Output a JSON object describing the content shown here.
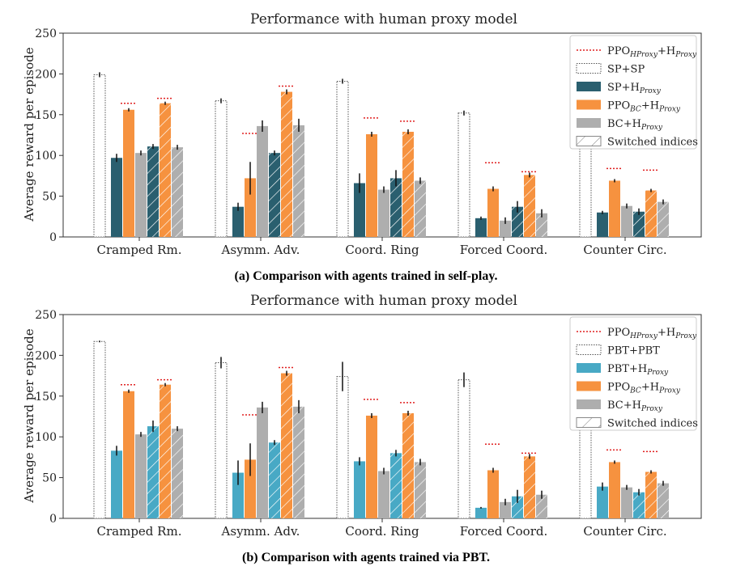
{
  "colors": {
    "sp_sp_edge": "#555555",
    "sp_proxy": "#2a5f6f",
    "pbt_proxy": "#48a9c5",
    "ppo_bc": "#f6923f",
    "bc": "#aeaeae",
    "ppo_ref": "#e02020",
    "error": "#111111"
  },
  "chart_data": [
    {
      "type": "bar",
      "title": "Performance with human proxy model",
      "caption": "(a) Comparison with agents trained in self-play.",
      "ylabel": "Average reward per episode",
      "ylim": [
        0,
        250
      ],
      "yticks": [
        "0",
        "50",
        "100",
        "150",
        "200",
        "250"
      ],
      "grid": false,
      "legend_position": "top-right",
      "categories": [
        "Cramped Rm.",
        "Asymm. Adv.",
        "Coord. Ring",
        "Forced Coord.",
        "Counter Circ."
      ],
      "legend": [
        {
          "label": "PPO",
          "sub": "HProxy",
          "tail": "+H",
          "tail_sub": "Proxy",
          "style": "ppo_ref"
        },
        {
          "label": "SP+SP",
          "style": "selfplay"
        },
        {
          "label": "SP+H",
          "sub": "Proxy",
          "style": "agent"
        },
        {
          "label": "PPO",
          "sub": "BC",
          "tail": "+H",
          "tail_sub": "Proxy",
          "style": "ppo_bc"
        },
        {
          "label": "BC+H",
          "sub": "Proxy",
          "style": "bc"
        },
        {
          "label": "Switched indices",
          "style": "hatch"
        }
      ],
      "series": [
        {
          "name": "SP+SP",
          "values": [
            199,
            167,
            191,
            152,
            157
          ],
          "errors": [
            3,
            3,
            3,
            3,
            3
          ]
        },
        {
          "name": "SP+HProxy",
          "values": [
            97,
            37,
            66,
            23,
            30
          ],
          "errors": [
            5,
            5,
            12,
            2,
            2
          ]
        },
        {
          "name": "PPOBC+HProxy",
          "values": [
            156,
            72,
            126,
            59,
            69
          ],
          "errors": [
            2,
            20,
            3,
            3,
            2
          ]
        },
        {
          "name": "BC+HProxy",
          "values": [
            103,
            null,
            58,
            20,
            38
          ],
          "errors": [
            3,
            0,
            4,
            4,
            3
          ]
        },
        {
          "name": "SP+HProxy (switched)",
          "values": [
            111,
            103,
            72,
            37,
            31
          ],
          "errors": [
            3,
            3,
            10,
            7,
            4
          ]
        },
        {
          "name": "PPOBC+HProxy (switched)",
          "values": [
            164,
            178,
            129,
            76,
            57
          ],
          "errors": [
            2,
            3,
            3,
            3,
            2
          ]
        },
        {
          "name": "BC+HProxy (switched)",
          "values": [
            110,
            137,
            69,
            29,
            43
          ],
          "errors": [
            3,
            8,
            4,
            5,
            3
          ]
        },
        {
          "name": "BC+HProxy (asymm. left)",
          "values": [
            null,
            136,
            null,
            null,
            null
          ],
          "errors": [
            0,
            7,
            0,
            0,
            0
          ]
        }
      ],
      "ppo_hproxy_ref": {
        "left": [
          164,
          127,
          146,
          91,
          84
        ],
        "right": [
          170,
          185,
          142,
          80,
          82
        ]
      }
    },
    {
      "type": "bar",
      "title": "Performance with human proxy model",
      "caption": "(b) Comparison with agents trained via PBT.",
      "ylabel": "Average reward per episode",
      "ylim": [
        0,
        250
      ],
      "yticks": [
        "0",
        "50",
        "100",
        "150",
        "200",
        "250"
      ],
      "grid": false,
      "legend_position": "top-right",
      "categories": [
        "Cramped Rm.",
        "Asymm. Adv.",
        "Coord. Ring",
        "Forced Coord.",
        "Counter Circ."
      ],
      "legend": [
        {
          "label": "PPO",
          "sub": "HProxy",
          "tail": "+H",
          "tail_sub": "Proxy",
          "style": "ppo_ref"
        },
        {
          "label": "PBT+PBT",
          "style": "selfplay"
        },
        {
          "label": "PBT+H",
          "sub": "Proxy",
          "style": "agent"
        },
        {
          "label": "PPO",
          "sub": "BC",
          "tail": "+H",
          "tail_sub": "Proxy",
          "style": "ppo_bc"
        },
        {
          "label": "BC+H",
          "sub": "Proxy",
          "style": "bc"
        },
        {
          "label": "Switched indices",
          "style": "hatch"
        }
      ],
      "series": [
        {
          "name": "PBT+PBT",
          "values": [
            217,
            191,
            174,
            170,
            157
          ],
          "errors": [
            1,
            7,
            18,
            9,
            3
          ]
        },
        {
          "name": "PBT+HProxy",
          "values": [
            83,
            56,
            70,
            13,
            39
          ],
          "errors": [
            6,
            15,
            5,
            1,
            5
          ]
        },
        {
          "name": "PPOBC+HProxy",
          "values": [
            156,
            72,
            126,
            59,
            69
          ],
          "errors": [
            2,
            20,
            3,
            3,
            2
          ]
        },
        {
          "name": "BC+HProxy",
          "values": [
            103,
            136,
            58,
            20,
            38
          ],
          "errors": [
            3,
            7,
            4,
            4,
            3
          ]
        },
        {
          "name": "PBT+HProxy (switched)",
          "values": [
            113,
            93,
            80,
            27,
            32
          ],
          "errors": [
            7,
            3,
            4,
            8,
            4
          ]
        },
        {
          "name": "PPOBC+HProxy (switched)",
          "values": [
            164,
            178,
            129,
            76,
            57
          ],
          "errors": [
            2,
            3,
            3,
            3,
            2
          ]
        },
        {
          "name": "BC+HProxy (switched)",
          "values": [
            110,
            137,
            69,
            29,
            43
          ],
          "errors": [
            3,
            8,
            4,
            5,
            3
          ]
        }
      ],
      "ppo_hproxy_ref": {
        "left": [
          164,
          127,
          146,
          91,
          84
        ],
        "right": [
          170,
          185,
          142,
          80,
          82
        ]
      }
    }
  ]
}
